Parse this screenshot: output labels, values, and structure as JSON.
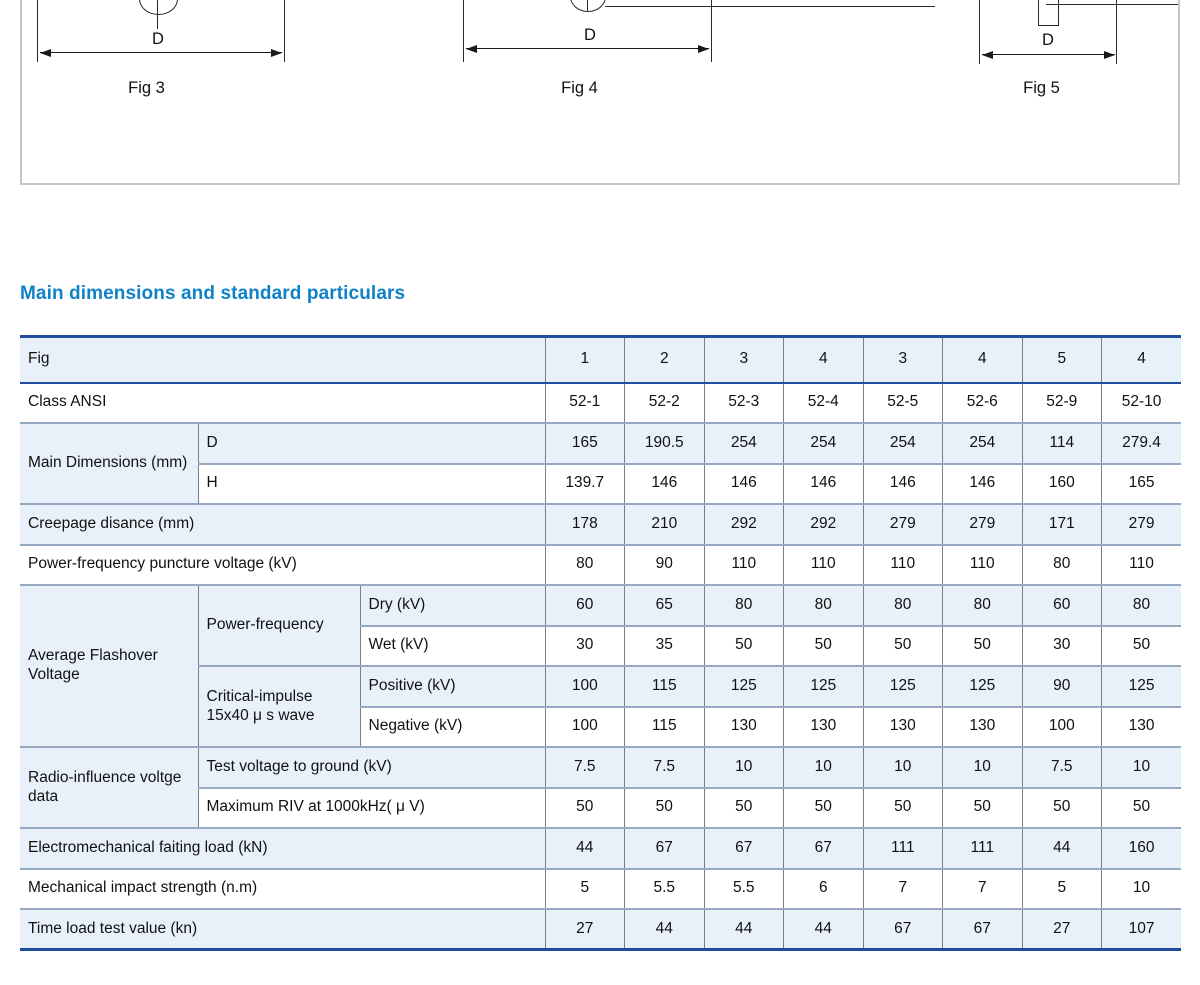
{
  "heading": "Main dimensions and standard particulars",
  "figures": {
    "dim_label": "D",
    "captions": [
      "Fig 3",
      "Fig 4",
      "Fig 5"
    ]
  },
  "theme": {
    "heading_color": "#1182c8",
    "table_frame_color": "#1f4e9c",
    "row_shade_color": "#e8f1fa",
    "grid_line_color": "#7d7d7d"
  },
  "table": {
    "rows": [
      {
        "shade": true,
        "head": true,
        "cells": [
          {
            "t": "Fig",
            "cs": 3,
            "type": "label"
          },
          {
            "t": "1"
          },
          {
            "t": "2"
          },
          {
            "t": "3"
          },
          {
            "t": "4"
          },
          {
            "t": "3"
          },
          {
            "t": "4"
          },
          {
            "t": "5"
          },
          {
            "t": "4"
          }
        ]
      },
      {
        "shade": false,
        "cells": [
          {
            "t": "Class ANSI",
            "cs": 3,
            "type": "label"
          },
          {
            "t": "52-1"
          },
          {
            "t": "52-2"
          },
          {
            "t": "52-3"
          },
          {
            "t": "52-4"
          },
          {
            "t": "52-5"
          },
          {
            "t": "52-6"
          },
          {
            "t": "52-9"
          },
          {
            "t": "52-10"
          }
        ]
      },
      {
        "shade": true,
        "cells": [
          {
            "t": "Main Dimensions (mm)",
            "rs": 2,
            "type": "label"
          },
          {
            "t": "D",
            "cs": 2,
            "type": "label"
          },
          {
            "t": "165"
          },
          {
            "t": "190.5"
          },
          {
            "t": "254"
          },
          {
            "t": "254"
          },
          {
            "t": "254"
          },
          {
            "t": "254"
          },
          {
            "t": "114"
          },
          {
            "t": "279.4"
          }
        ]
      },
      {
        "shade": false,
        "cells": [
          {
            "t": "H",
            "cs": 2,
            "type": "label"
          },
          {
            "t": "139.7"
          },
          {
            "t": "146"
          },
          {
            "t": "146"
          },
          {
            "t": "146"
          },
          {
            "t": "146"
          },
          {
            "t": "146"
          },
          {
            "t": "160"
          },
          {
            "t": "165"
          }
        ]
      },
      {
        "shade": true,
        "cells": [
          {
            "t": "Creepage disance (mm)",
            "cs": 3,
            "type": "label"
          },
          {
            "t": "178"
          },
          {
            "t": "210"
          },
          {
            "t": "292"
          },
          {
            "t": "292"
          },
          {
            "t": "279"
          },
          {
            "t": "279"
          },
          {
            "t": "171"
          },
          {
            "t": "279"
          }
        ]
      },
      {
        "shade": false,
        "cells": [
          {
            "t": "Power-frequency puncture voltage (kV)",
            "cs": 3,
            "type": "label"
          },
          {
            "t": "80"
          },
          {
            "t": "90"
          },
          {
            "t": "110"
          },
          {
            "t": "110"
          },
          {
            "t": "110"
          },
          {
            "t": "110"
          },
          {
            "t": "80"
          },
          {
            "t": "110"
          }
        ]
      },
      {
        "shade": true,
        "cells": [
          {
            "t": "Average Flashover Voltage",
            "rs": 4,
            "type": "label"
          },
          {
            "t": "Power-frequency",
            "rs": 2,
            "type": "label"
          },
          {
            "t": "Dry (kV)",
            "type": "label"
          },
          {
            "t": "60"
          },
          {
            "t": "65"
          },
          {
            "t": "80"
          },
          {
            "t": "80"
          },
          {
            "t": "80"
          },
          {
            "t": "80"
          },
          {
            "t": "60"
          },
          {
            "t": "80"
          }
        ]
      },
      {
        "shade": false,
        "cells": [
          {
            "t": "Wet (kV)",
            "type": "label"
          },
          {
            "t": "30"
          },
          {
            "t": "35"
          },
          {
            "t": "50"
          },
          {
            "t": "50"
          },
          {
            "t": "50"
          },
          {
            "t": "50"
          },
          {
            "t": "30"
          },
          {
            "t": "50"
          }
        ]
      },
      {
        "shade": true,
        "cells": [
          {
            "t": "Critical-impulse 15x40 μ s wave",
            "rs": 2,
            "type": "label"
          },
          {
            "t": "Positive (kV)",
            "type": "label"
          },
          {
            "t": "100"
          },
          {
            "t": "115"
          },
          {
            "t": "125"
          },
          {
            "t": "125"
          },
          {
            "t": "125"
          },
          {
            "t": "125"
          },
          {
            "t": "90"
          },
          {
            "t": "125"
          }
        ]
      },
      {
        "shade": false,
        "cells": [
          {
            "t": "Negative (kV)",
            "type": "label"
          },
          {
            "t": "100"
          },
          {
            "t": "115"
          },
          {
            "t": "130"
          },
          {
            "t": "130"
          },
          {
            "t": "130"
          },
          {
            "t": "130"
          },
          {
            "t": "100"
          },
          {
            "t": "130"
          }
        ]
      },
      {
        "shade": true,
        "cells": [
          {
            "t": "Radio-influence voltge data",
            "rs": 2,
            "type": "label"
          },
          {
            "t": "Test voltage to ground (kV)",
            "cs": 2,
            "type": "label"
          },
          {
            "t": "7.5"
          },
          {
            "t": "7.5"
          },
          {
            "t": "10"
          },
          {
            "t": "10"
          },
          {
            "t": "10"
          },
          {
            "t": "10"
          },
          {
            "t": "7.5"
          },
          {
            "t": "10"
          }
        ]
      },
      {
        "shade": false,
        "cells": [
          {
            "t": "Maximum RIV at 1000kHz( μ V)",
            "cs": 2,
            "type": "label"
          },
          {
            "t": "50"
          },
          {
            "t": "50"
          },
          {
            "t": "50"
          },
          {
            "t": "50"
          },
          {
            "t": "50"
          },
          {
            "t": "50"
          },
          {
            "t": "50"
          },
          {
            "t": "50"
          }
        ]
      },
      {
        "shade": true,
        "cells": [
          {
            "t": "Electromechanical faiting load (kN)",
            "cs": 3,
            "type": "label"
          },
          {
            "t": "44"
          },
          {
            "t": "67"
          },
          {
            "t": "67"
          },
          {
            "t": "67"
          },
          {
            "t": "111"
          },
          {
            "t": "111"
          },
          {
            "t": "44"
          },
          {
            "t": "160"
          }
        ]
      },
      {
        "shade": false,
        "cells": [
          {
            "t": "Mechanical impact strength (n.m)",
            "cs": 3,
            "type": "label"
          },
          {
            "t": "5"
          },
          {
            "t": "5.5"
          },
          {
            "t": "5.5"
          },
          {
            "t": "6"
          },
          {
            "t": "7"
          },
          {
            "t": "7"
          },
          {
            "t": "5"
          },
          {
            "t": "10"
          }
        ]
      },
      {
        "shade": true,
        "cells": [
          {
            "t": "Time load test value (kn)",
            "cs": 3,
            "type": "label"
          },
          {
            "t": "27"
          },
          {
            "t": "44"
          },
          {
            "t": "44"
          },
          {
            "t": "44"
          },
          {
            "t": "67"
          },
          {
            "t": "67"
          },
          {
            "t": "27"
          },
          {
            "t": "107"
          }
        ]
      }
    ]
  }
}
